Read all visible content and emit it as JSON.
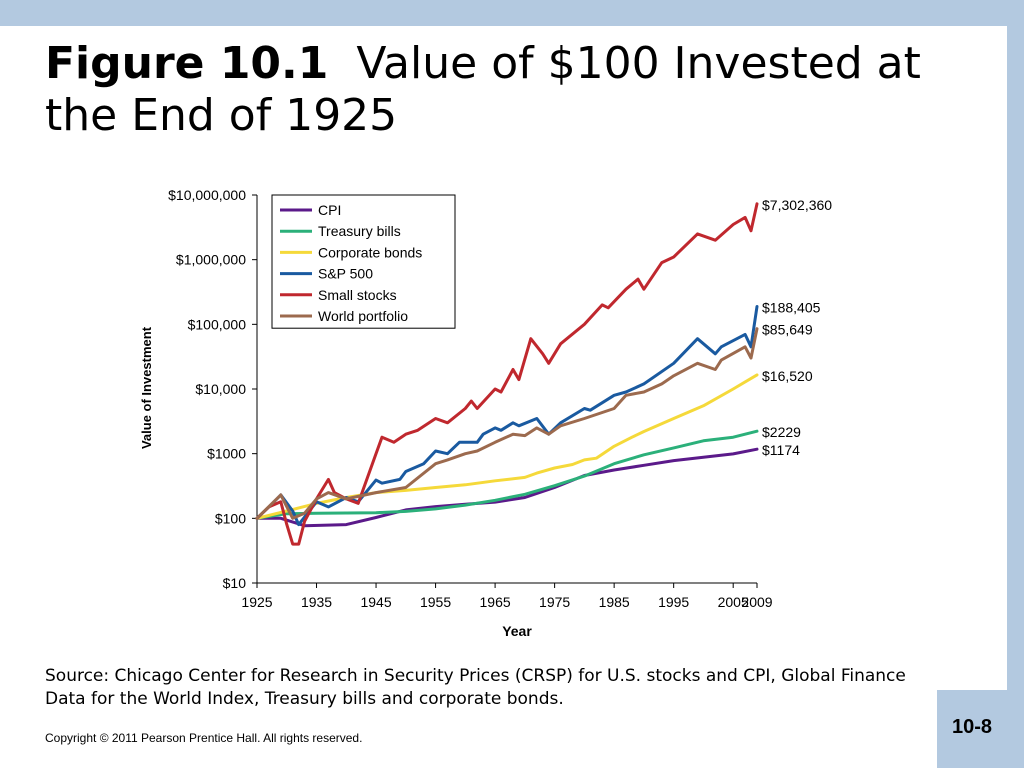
{
  "slide": {
    "figure_label": "Figure 10.1",
    "title_rest": "Value of $100 Invested at the End of 1925",
    "source": "Source: Chicago Center for Research in Security Prices (CRSP) for U.S. stocks and CPI, Global Finance Data for the World Index, Treasury bills and corporate bonds.",
    "copyright": "Copyright © 2011 Pearson Prentice Hall. All rights reserved.",
    "page_number": "10-8"
  },
  "colors": {
    "bar": "#b3c9e0",
    "CPI": "#5b1a8a",
    "Treasury bills": "#2bb07a",
    "Corporate bonds": "#f5d93a",
    "S&P 500": "#1a5aa0",
    "Small stocks": "#c0282e",
    "World portfolio": "#9c6a4e"
  },
  "chart_data": {
    "type": "line",
    "xlabel": "Year",
    "ylabel": "Value of Investment",
    "y_scale": "log",
    "ylim": [
      10,
      10000000
    ],
    "xlim": [
      1925,
      2009
    ],
    "y_ticks": [
      {
        "value": 10,
        "label": "$10"
      },
      {
        "value": 100,
        "label": "$100"
      },
      {
        "value": 1000,
        "label": "$1000"
      },
      {
        "value": 10000,
        "label": "$10,000"
      },
      {
        "value": 100000,
        "label": "$100,000"
      },
      {
        "value": 1000000,
        "label": "$1,000,000"
      },
      {
        "value": 10000000,
        "label": "$10,000,000"
      }
    ],
    "x_ticks": [
      1925,
      1935,
      1945,
      1955,
      1965,
      1975,
      1985,
      1995,
      2005,
      2009
    ],
    "legend_position": "top-left",
    "series": [
      {
        "name": "CPI",
        "end_label": "$1174",
        "points": [
          [
            1925,
            100
          ],
          [
            1929,
            100
          ],
          [
            1933,
            77
          ],
          [
            1940,
            80
          ],
          [
            1945,
            103
          ],
          [
            1950,
            135
          ],
          [
            1955,
            152
          ],
          [
            1960,
            165
          ],
          [
            1965,
            178
          ],
          [
            1970,
            210
          ],
          [
            1975,
            300
          ],
          [
            1980,
            460
          ],
          [
            1985,
            560
          ],
          [
            1990,
            660
          ],
          [
            1995,
            780
          ],
          [
            2000,
            880
          ],
          [
            2005,
            990
          ],
          [
            2009,
            1174
          ]
        ]
      },
      {
        "name": "Treasury bills",
        "end_label": "$2229",
        "points": [
          [
            1925,
            100
          ],
          [
            1930,
            118
          ],
          [
            1935,
            120
          ],
          [
            1945,
            122
          ],
          [
            1950,
            128
          ],
          [
            1955,
            140
          ],
          [
            1960,
            160
          ],
          [
            1965,
            190
          ],
          [
            1970,
            235
          ],
          [
            1975,
            320
          ],
          [
            1980,
            450
          ],
          [
            1985,
            700
          ],
          [
            1990,
            960
          ],
          [
            1995,
            1230
          ],
          [
            2000,
            1580
          ],
          [
            2005,
            1800
          ],
          [
            2009,
            2229
          ]
        ]
      },
      {
        "name": "Corporate bonds",
        "end_label": "$16,520",
        "points": [
          [
            1925,
            100
          ],
          [
            1930,
            130
          ],
          [
            1935,
            170
          ],
          [
            1940,
            210
          ],
          [
            1945,
            250
          ],
          [
            1950,
            270
          ],
          [
            1955,
            300
          ],
          [
            1960,
            330
          ],
          [
            1965,
            380
          ],
          [
            1970,
            430
          ],
          [
            1972,
            500
          ],
          [
            1975,
            600
          ],
          [
            1978,
            680
          ],
          [
            1980,
            800
          ],
          [
            1982,
            850
          ],
          [
            1985,
            1300
          ],
          [
            1988,
            1800
          ],
          [
            1990,
            2200
          ],
          [
            1995,
            3500
          ],
          [
            2000,
            5500
          ],
          [
            2005,
            10000
          ],
          [
            2009,
            16520
          ]
        ]
      },
      {
        "name": "S&P 500",
        "end_label": "$188,405",
        "points": [
          [
            1925,
            100
          ],
          [
            1927,
            150
          ],
          [
            1929,
            230
          ],
          [
            1931,
            130
          ],
          [
            1932,
            80
          ],
          [
            1935,
            180
          ],
          [
            1937,
            150
          ],
          [
            1940,
            210
          ],
          [
            1942,
            180
          ],
          [
            1945,
            390
          ],
          [
            1946,
            350
          ],
          [
            1949,
            400
          ],
          [
            1950,
            530
          ],
          [
            1953,
            700
          ],
          [
            1955,
            1100
          ],
          [
            1957,
            1000
          ],
          [
            1959,
            1500
          ],
          [
            1962,
            1500
          ],
          [
            1963,
            2000
          ],
          [
            1965,
            2500
          ],
          [
            1966,
            2300
          ],
          [
            1968,
            3000
          ],
          [
            1969,
            2700
          ],
          [
            1972,
            3500
          ],
          [
            1974,
            2000
          ],
          [
            1976,
            3000
          ],
          [
            1980,
            5000
          ],
          [
            1981,
            4700
          ],
          [
            1985,
            8000
          ],
          [
            1987,
            9000
          ],
          [
            1990,
            12000
          ],
          [
            1995,
            25000
          ],
          [
            1999,
            60000
          ],
          [
            2002,
            35000
          ],
          [
            2003,
            45000
          ],
          [
            2007,
            70000
          ],
          [
            2008,
            45000
          ],
          [
            2009,
            188405
          ]
        ]
      },
      {
        "name": "Small stocks",
        "end_label": "$7,302,360",
        "points": [
          [
            1925,
            100
          ],
          [
            1927,
            150
          ],
          [
            1929,
            180
          ],
          [
            1930,
            80
          ],
          [
            1931,
            40
          ],
          [
            1932,
            40
          ],
          [
            1933,
            90
          ],
          [
            1935,
            200
          ],
          [
            1937,
            400
          ],
          [
            1938,
            250
          ],
          [
            1940,
            200
          ],
          [
            1942,
            170
          ],
          [
            1945,
            1000
          ],
          [
            1946,
            1800
          ],
          [
            1948,
            1500
          ],
          [
            1950,
            2000
          ],
          [
            1952,
            2300
          ],
          [
            1955,
            3500
          ],
          [
            1957,
            3000
          ],
          [
            1960,
            5000
          ],
          [
            1961,
            6500
          ],
          [
            1962,
            5000
          ],
          [
            1965,
            10000
          ],
          [
            1966,
            9000
          ],
          [
            1968,
            20000
          ],
          [
            1969,
            14000
          ],
          [
            1971,
            60000
          ],
          [
            1973,
            35000
          ],
          [
            1974,
            25000
          ],
          [
            1976,
            50000
          ],
          [
            1980,
            100000
          ],
          [
            1983,
            200000
          ],
          [
            1984,
            180000
          ],
          [
            1987,
            350000
          ],
          [
            1989,
            500000
          ],
          [
            1990,
            350000
          ],
          [
            1993,
            900000
          ],
          [
            1995,
            1100000
          ],
          [
            1999,
            2500000
          ],
          [
            2002,
            2000000
          ],
          [
            2005,
            3500000
          ],
          [
            2007,
            4500000
          ],
          [
            2008,
            2800000
          ],
          [
            2009,
            7302360
          ]
        ]
      },
      {
        "name": "World portfolio",
        "end_label": "$85,649",
        "points": [
          [
            1925,
            100
          ],
          [
            1929,
            230
          ],
          [
            1931,
            100
          ],
          [
            1933,
            120
          ],
          [
            1935,
            200
          ],
          [
            1937,
            250
          ],
          [
            1940,
            200
          ],
          [
            1945,
            250
          ],
          [
            1950,
            300
          ],
          [
            1955,
            700
          ],
          [
            1957,
            800
          ],
          [
            1960,
            1000
          ],
          [
            1962,
            1100
          ],
          [
            1965,
            1500
          ],
          [
            1968,
            2000
          ],
          [
            1970,
            1900
          ],
          [
            1972,
            2500
          ],
          [
            1974,
            2000
          ],
          [
            1976,
            2700
          ],
          [
            1980,
            3500
          ],
          [
            1985,
            5000
          ],
          [
            1987,
            8000
          ],
          [
            1990,
            9000
          ],
          [
            1993,
            12000
          ],
          [
            1995,
            16000
          ],
          [
            1999,
            25000
          ],
          [
            2002,
            20000
          ],
          [
            2003,
            28000
          ],
          [
            2007,
            45000
          ],
          [
            2008,
            30000
          ],
          [
            2009,
            85649
          ]
        ]
      }
    ]
  }
}
